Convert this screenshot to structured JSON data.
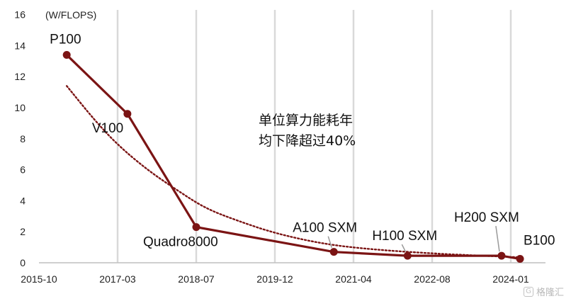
{
  "chart_data": {
    "type": "line",
    "ylabel": "(W/FLOPS)",
    "ylim": [
      0,
      16
    ],
    "yticks": [
      0,
      2,
      4,
      6,
      8,
      10,
      12,
      14,
      16
    ],
    "xticks": [
      "2015-10",
      "2017-03",
      "2018-07",
      "2019-12",
      "2021-04",
      "2022-08",
      "2024-01"
    ],
    "grid": "vertical",
    "series": [
      {
        "color": "#7b1414",
        "points": [
          {
            "label": "P100",
            "x": "2016-04",
            "y": 13.4
          },
          {
            "label": "V100",
            "x": "2017-05",
            "y": 9.6
          },
          {
            "label": "Quadro8000",
            "x": "2018-07",
            "y": 2.3
          },
          {
            "label": "A100 SXM",
            "x": "2020-12",
            "y": 0.7
          },
          {
            "label": "H100 SXM",
            "x": "2022-03",
            "y": 0.45
          },
          {
            "label": "H200 SXM",
            "x": "2023-11",
            "y": 0.45
          },
          {
            "label": "B100",
            "x": "2024-03",
            "y": 0.25
          }
        ]
      },
      {
        "style": "dotted-trend",
        "color": "#7b1414",
        "points": [
          {
            "x": "2016-04",
            "y": 11.4
          },
          {
            "x": "2016-10",
            "y": 9.2
          },
          {
            "x": "2017-03",
            "y": 7.6
          },
          {
            "x": "2017-09",
            "y": 6.0
          },
          {
            "x": "2018-03",
            "y": 4.7
          },
          {
            "x": "2018-09",
            "y": 3.5
          },
          {
            "x": "2019-04",
            "y": 2.7
          },
          {
            "x": "2019-12",
            "y": 1.9
          },
          {
            "x": "2020-10",
            "y": 1.2
          },
          {
            "x": "2021-08",
            "y": 0.85
          },
          {
            "x": "2022-08",
            "y": 0.6
          },
          {
            "x": "2023-07",
            "y": 0.45
          },
          {
            "x": "2024-03",
            "y": 0.35
          }
        ]
      }
    ]
  },
  "annotation": {
    "line1": "单位算力能耗年",
    "line2": "均下降超过40%"
  },
  "watermark": {
    "text": "格隆汇",
    "icon": "G"
  }
}
